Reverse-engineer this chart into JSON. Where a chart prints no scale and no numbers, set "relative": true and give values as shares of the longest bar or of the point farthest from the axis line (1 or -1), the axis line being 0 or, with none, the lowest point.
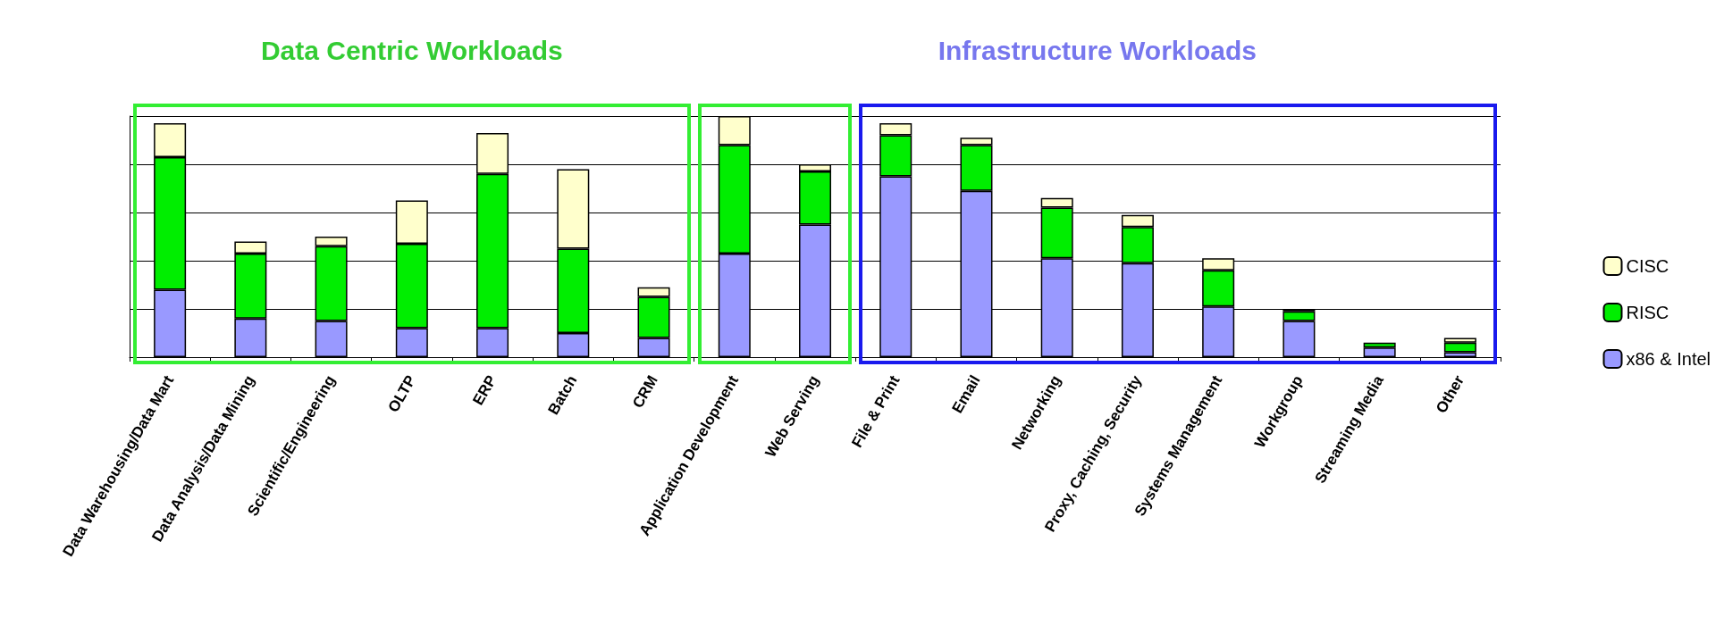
{
  "chart_data": {
    "type": "bar",
    "stacked": true,
    "relative": true,
    "grid": "y",
    "legend": "right",
    "categories": [
      "Data Warehousing/Data Mart",
      "Data Analysis/Data Mining",
      "Scientific/Engineering",
      "OLTP",
      "ERP",
      "Batch",
      "CRM",
      "Application Development",
      "Web Serving",
      "File & Print",
      "Email",
      "Networking",
      "Proxy, Caching, Security",
      "Systems Management",
      "Workgroup",
      "Streaming Media",
      "Other"
    ],
    "series": [
      {
        "name": "x86 & Intel",
        "color": "#9999ff",
        "values": [
          0.28,
          0.16,
          0.15,
          0.12,
          0.12,
          0.1,
          0.08,
          0.43,
          0.55,
          0.75,
          0.69,
          0.41,
          0.39,
          0.21,
          0.15,
          0.04,
          0.02
        ]
      },
      {
        "name": "RISC",
        "color": "#00ee00",
        "values": [
          0.55,
          0.27,
          0.31,
          0.35,
          0.64,
          0.35,
          0.17,
          0.45,
          0.22,
          0.17,
          0.19,
          0.21,
          0.15,
          0.15,
          0.04,
          0.02,
          0.04
        ]
      },
      {
        "name": "CISC",
        "color": "#ffffcc",
        "values": [
          0.14,
          0.05,
          0.04,
          0.18,
          0.17,
          0.33,
          0.04,
          0.12,
          0.03,
          0.05,
          0.03,
          0.04,
          0.05,
          0.05,
          0.01,
          null,
          0.02
        ]
      }
    ],
    "annotations": [
      "Data Centric Workloads",
      "Infrastructure Workloads"
    ]
  }
}
